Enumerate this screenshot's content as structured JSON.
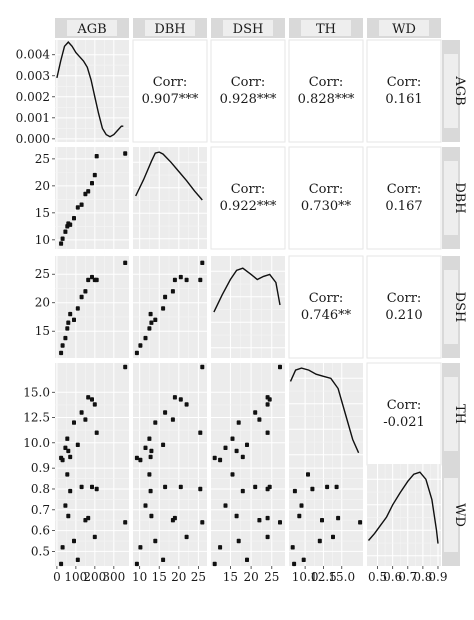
{
  "chart_data": {
    "type": "scatter",
    "variables": [
      "AGB",
      "DBH",
      "DSH",
      "TH",
      "WD"
    ],
    "ticks": {
      "AGB": {
        "x": [
          "0",
          "100",
          "200",
          "300"
        ],
        "density_y": [
          "0.000",
          "0.001",
          "0.002",
          "0.003",
          "0.004"
        ]
      },
      "DBH": [
        "10",
        "15",
        "20",
        "25"
      ],
      "DSH": [
        "15",
        "20",
        "25"
      ],
      "TH": [
        "10.0",
        "12.5",
        "15.0"
      ],
      "WD": [
        "0.5",
        "0.6",
        "0.7",
        "0.8",
        "0.9"
      ]
    },
    "correlations": [
      {
        "row": "AGB",
        "col": "DBH",
        "label": "Corr:",
        "value": "0.907***"
      },
      {
        "row": "AGB",
        "col": "DSH",
        "label": "Corr:",
        "value": "0.928***"
      },
      {
        "row": "AGB",
        "col": "TH",
        "label": "Corr:",
        "value": "0.828***"
      },
      {
        "row": "AGB",
        "col": "WD",
        "label": "Corr:",
        "value": "0.161"
      },
      {
        "row": "DBH",
        "col": "DSH",
        "label": "Corr:",
        "value": "0.922***"
      },
      {
        "row": "DBH",
        "col": "TH",
        "label": "Corr:",
        "value": "0.730**"
      },
      {
        "row": "DBH",
        "col": "WD",
        "label": "Corr:",
        "value": "0.167"
      },
      {
        "row": "DSH",
        "col": "TH",
        "label": "Corr:",
        "value": "0.746**"
      },
      {
        "row": "DSH",
        "col": "WD",
        "label": "Corr:",
        "value": "0.210"
      },
      {
        "row": "TH",
        "col": "WD",
        "label": "Corr:",
        "value": "-0.021"
      }
    ],
    "observations": [
      {
        "AGB": 22,
        "DBH": 9.3,
        "DSH": 11.2,
        "TH": 8.5,
        "WD": 0.44
      },
      {
        "AGB": 30,
        "DBH": 10.2,
        "DSH": 12.5,
        "TH": 8.3,
        "WD": 0.52
      },
      {
        "AGB": 45,
        "DBH": 11.5,
        "DSH": 13.8,
        "TH": 9.5,
        "WD": 0.72
      },
      {
        "AGB": 55,
        "DBH": 12.5,
        "DSH": 15.5,
        "TH": 10.4,
        "WD": 0.87
      },
      {
        "AGB": 60,
        "DBH": 13.0,
        "DSH": 16.5,
        "TH": 9.2,
        "WD": 0.67
      },
      {
        "AGB": 70,
        "DBH": 12.8,
        "DSH": 18.0,
        "TH": 8.6,
        "WD": 0.79
      },
      {
        "AGB": 90,
        "DBH": 14.0,
        "DSH": 17.0,
        "TH": 12.0,
        "WD": 0.55
      },
      {
        "AGB": 110,
        "DBH": 16.0,
        "DSH": 19.0,
        "TH": 9.8,
        "WD": 0.46
      },
      {
        "AGB": 130,
        "DBH": 16.5,
        "DSH": 21.0,
        "TH": 13.0,
        "WD": 0.81
      },
      {
        "AGB": 150,
        "DBH": 18.5,
        "DSH": 22.0,
        "TH": 12.3,
        "WD": 0.65
      },
      {
        "AGB": 165,
        "DBH": 19.0,
        "DSH": 24.0,
        "TH": 14.5,
        "WD": 0.66
      },
      {
        "AGB": 185,
        "DBH": 20.5,
        "DSH": 24.5,
        "TH": 14.3,
        "WD": 0.81
      },
      {
        "AGB": 200,
        "DBH": 22.0,
        "DSH": 24.0,
        "TH": 13.8,
        "WD": 0.57
      },
      {
        "AGB": 210,
        "DBH": 25.5,
        "DSH": 24.0,
        "TH": 11.0,
        "WD": 0.8
      },
      {
        "AGB": 360,
        "DBH": 26.0,
        "DSH": 27.0,
        "TH": 17.5,
        "WD": 0.64
      }
    ],
    "ranges": {
      "AGB": [
        -10,
        380
      ],
      "DBH": [
        8.3,
        27.2
      ],
      "DSH": [
        10.3,
        28.2
      ],
      "TH": [
        7.8,
        17.9
      ],
      "WD": [
        0.43,
        0.92
      ]
    },
    "density_range": [
      -0.00015,
      0.0047
    ],
    "densities": {
      "AGB": [
        [
          0,
          0.0029
        ],
        [
          20,
          0.0037
        ],
        [
          40,
          0.0044
        ],
        [
          60,
          0.0046
        ],
        [
          80,
          0.0044
        ],
        [
          100,
          0.0041
        ],
        [
          120,
          0.0039
        ],
        [
          140,
          0.0037
        ],
        [
          160,
          0.0034
        ],
        [
          180,
          0.0028
        ],
        [
          200,
          0.002
        ],
        [
          220,
          0.0012
        ],
        [
          240,
          0.0005
        ],
        [
          260,
          0.0002
        ],
        [
          280,
          0.0001
        ],
        [
          300,
          0.0002
        ],
        [
          320,
          0.0004
        ],
        [
          340,
          0.0006
        ],
        [
          350,
          0.0006
        ]
      ],
      "DBH": [
        [
          9,
          0.52
        ],
        [
          11,
          0.68
        ],
        [
          13,
          0.86
        ],
        [
          14,
          0.94
        ],
        [
          15,
          0.95
        ],
        [
          16,
          0.93
        ],
        [
          18,
          0.85
        ],
        [
          20,
          0.76
        ],
        [
          22,
          0.67
        ],
        [
          24,
          0.57
        ],
        [
          26,
          0.48
        ]
      ],
      "DSH": [
        [
          11,
          0.45
        ],
        [
          13,
          0.62
        ],
        [
          15,
          0.77
        ],
        [
          16.5,
          0.86
        ],
        [
          18,
          0.88
        ],
        [
          20,
          0.82
        ],
        [
          21.5,
          0.77
        ],
        [
          23,
          0.8
        ],
        [
          24.5,
          0.82
        ],
        [
          26,
          0.74
        ],
        [
          27,
          0.52
        ]
      ],
      "TH": [
        [
          8.0,
          0.82
        ],
        [
          8.7,
          0.93
        ],
        [
          9.5,
          0.95
        ],
        [
          10.5,
          0.93
        ],
        [
          11.5,
          0.89
        ],
        [
          12.5,
          0.87
        ],
        [
          13.5,
          0.85
        ],
        [
          14.5,
          0.75
        ],
        [
          15.5,
          0.5
        ],
        [
          16.5,
          0.25
        ],
        [
          17.3,
          0.12
        ]
      ],
      "WD": [
        [
          0.44,
          0.25
        ],
        [
          0.48,
          0.32
        ],
        [
          0.52,
          0.4
        ],
        [
          0.56,
          0.48
        ],
        [
          0.6,
          0.6
        ],
        [
          0.65,
          0.72
        ],
        [
          0.7,
          0.83
        ],
        [
          0.74,
          0.9
        ],
        [
          0.78,
          0.92
        ],
        [
          0.82,
          0.85
        ],
        [
          0.86,
          0.65
        ],
        [
          0.89,
          0.35
        ],
        [
          0.9,
          0.22
        ]
      ]
    }
  }
}
